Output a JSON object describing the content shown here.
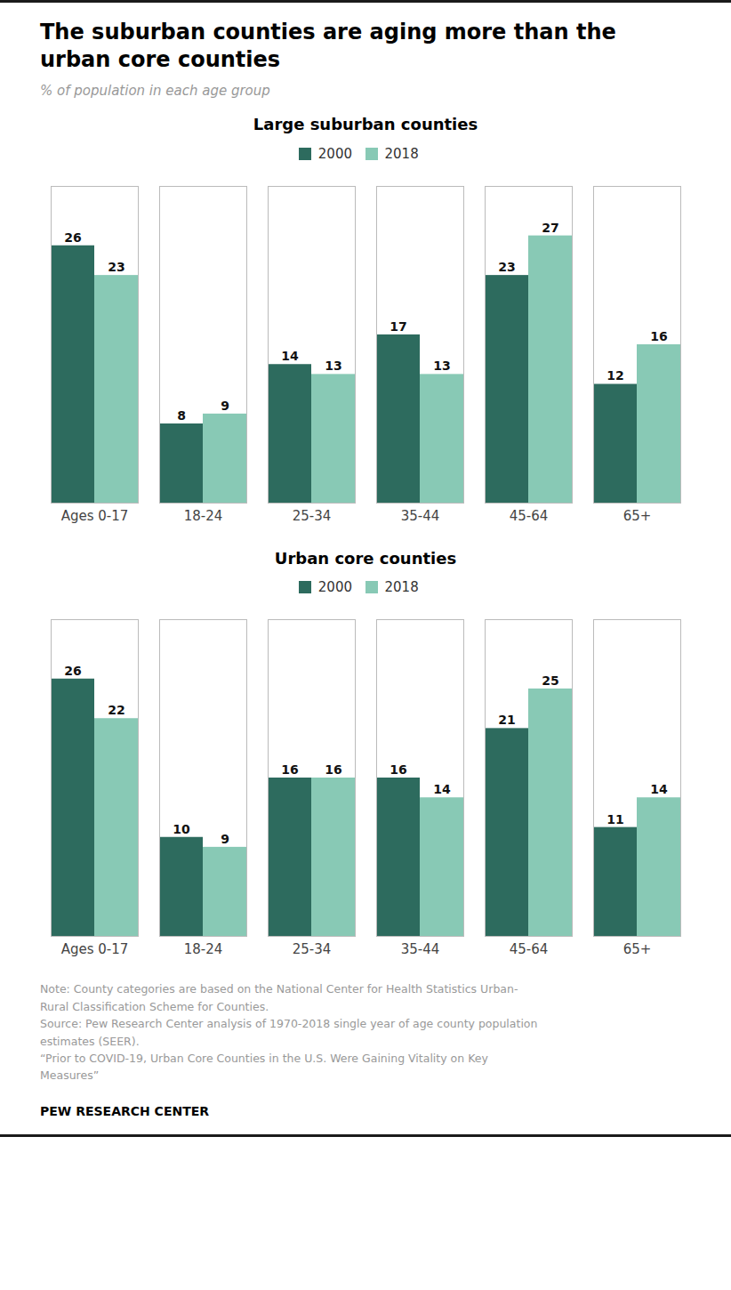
{
  "title": [
    "The suburban counties are aging more than the",
    "urban core counties"
  ],
  "subtitle": "% of population in each age group",
  "notes": [
    "Note: County categories are based on the National Center for Health Statistics Urban-",
    "Rural Classification Scheme for Counties.",
    "Source: Pew Research Center analysis of 1970-2018 single year of age county population",
    "estimates (SEER).",
    "“Prior to COVID-19, Urban Core Counties in the U.S. Were Gaining Vitality on Key",
    "Measures”"
  ],
  "footer": "PEW RESEARCH CENTER",
  "chart_data": [
    {
      "type": "bar",
      "title": "Large suburban counties",
      "categories": [
        "Ages 0-17",
        "18-24",
        "25-34",
        "35-44",
        "45-64",
        "65+"
      ],
      "series": [
        {
          "name": "2000",
          "color": "#2d6b5e",
          "values": [
            26,
            8,
            14,
            17,
            23,
            12
          ]
        },
        {
          "name": "2018",
          "color": "#88c9b5",
          "values": [
            23,
            9,
            13,
            13,
            27,
            16
          ]
        }
      ],
      "ylim": [
        0,
        32
      ],
      "data_labels": true,
      "tick_labels": "x",
      "grid": false,
      "legend": "top"
    },
    {
      "type": "bar",
      "title": "Urban core counties",
      "categories": [
        "Ages 0-17",
        "18-24",
        "25-34",
        "35-44",
        "45-64",
        "65+"
      ],
      "series": [
        {
          "name": "2000",
          "color": "#2d6b5e",
          "values": [
            26,
            10,
            16,
            16,
            21,
            11
          ]
        },
        {
          "name": "2018",
          "color": "#88c9b5",
          "values": [
            22,
            9,
            16,
            14,
            25,
            14
          ]
        }
      ],
      "ylim": [
        0,
        32
      ],
      "data_labels": true,
      "tick_labels": "x",
      "grid": false,
      "legend": "top"
    }
  ]
}
